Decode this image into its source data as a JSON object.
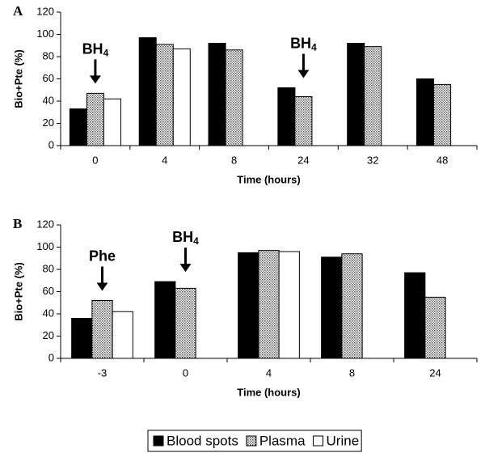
{
  "chart_data": [
    {
      "type": "bar",
      "panel": "A",
      "ylabel": "Bio+Pte (%)",
      "xlabel": "Time (hours)",
      "categories": [
        "0",
        "4",
        "8",
        "24",
        "32",
        "48"
      ],
      "series": [
        {
          "name": "Blood spots",
          "color": "#000000",
          "values": [
            33,
            97,
            92,
            52,
            92,
            60
          ]
        },
        {
          "name": "Plasma",
          "color": "#c8c8c8",
          "pattern": "dots",
          "values": [
            47,
            91,
            86,
            44,
            89,
            55
          ]
        },
        {
          "name": "Urine",
          "color": "#ffffff",
          "values": [
            42,
            87,
            null,
            null,
            null,
            null
          ]
        }
      ],
      "ylim": [
        0,
        120
      ],
      "yticks": [
        0,
        20,
        40,
        60,
        80,
        100,
        120
      ],
      "annotations": [
        {
          "at": "0",
          "text": "BH",
          "sub": "4"
        },
        {
          "at": "24",
          "text": "BH",
          "sub": "4"
        }
      ]
    },
    {
      "type": "bar",
      "panel": "B",
      "ylabel": "Bio+Pte (%)",
      "xlabel": "Time (hours)",
      "categories": [
        "-3",
        "0",
        "4",
        "8",
        "24"
      ],
      "series": [
        {
          "name": "Blood spots",
          "color": "#000000",
          "values": [
            36,
            69,
            95,
            91,
            77
          ]
        },
        {
          "name": "Plasma",
          "color": "#c8c8c8",
          "pattern": "dots",
          "values": [
            52,
            63,
            97,
            94,
            55
          ]
        },
        {
          "name": "Urine",
          "color": "#ffffff",
          "values": [
            42,
            null,
            96,
            null,
            null
          ]
        }
      ],
      "ylim": [
        0,
        120
      ],
      "yticks": [
        0,
        20,
        40,
        60,
        80,
        100,
        120
      ],
      "annotations": [
        {
          "at": "-3",
          "text": "Phe"
        },
        {
          "at": "0",
          "text": "BH",
          "sub": "4"
        }
      ]
    }
  ]
}
